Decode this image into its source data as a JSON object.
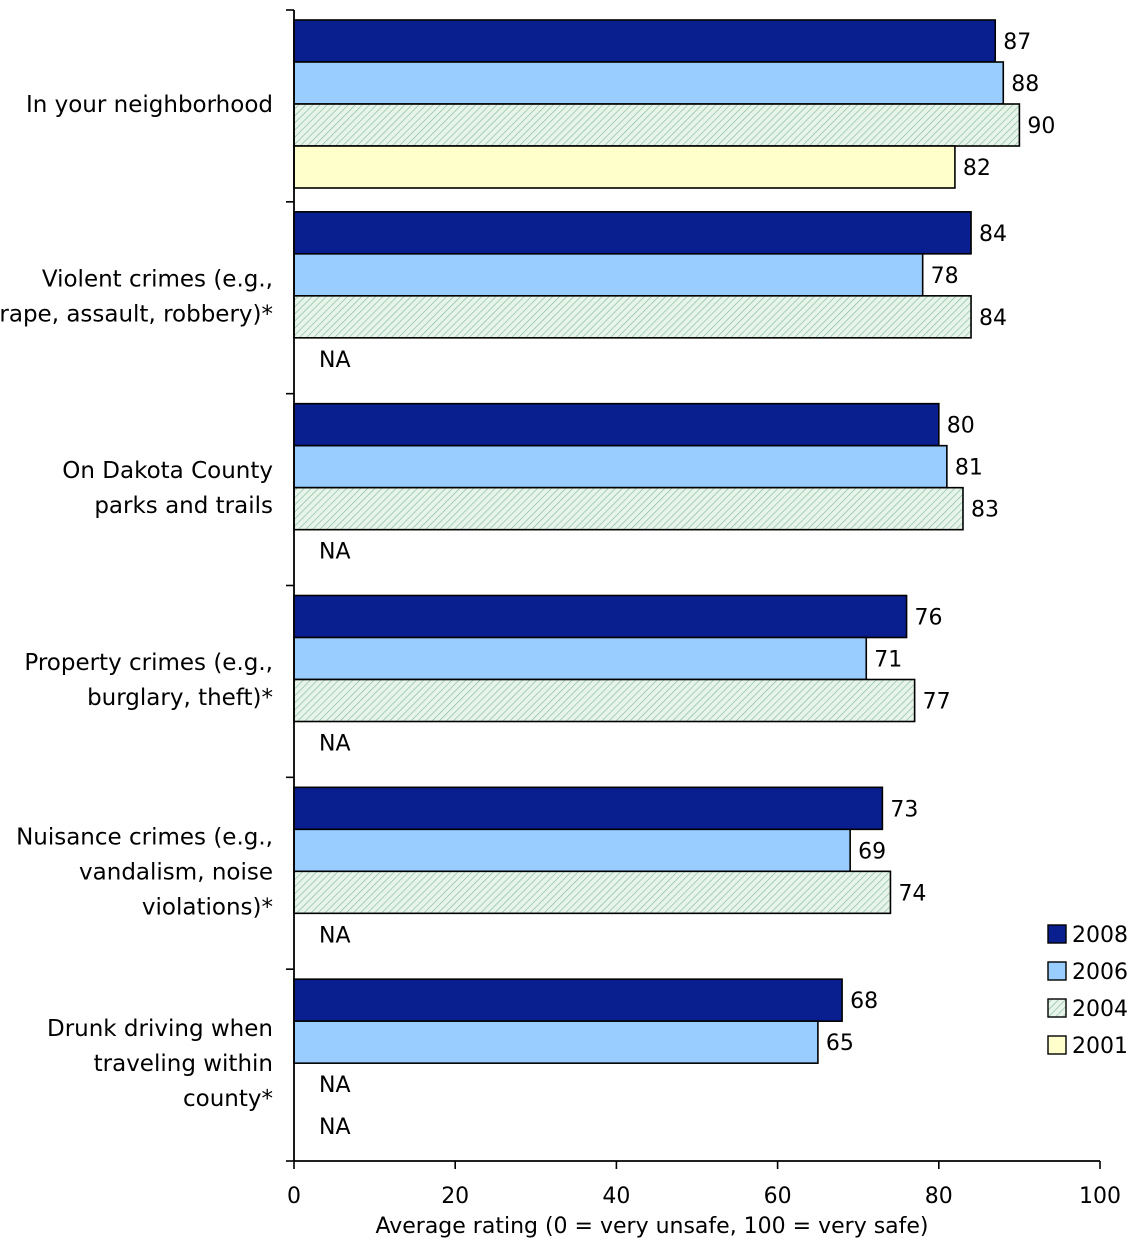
{
  "chart_data": {
    "type": "bar",
    "orientation": "horizontal",
    "categories": [
      [
        "In your neighborhood"
      ],
      [
        "Violent crimes (e.g.,",
        "rape, assault, robbery)*"
      ],
      [
        "On Dakota County",
        "parks and trails"
      ],
      [
        "Property crimes (e.g.,",
        "burglary, theft)*"
      ],
      [
        "Nuisance crimes (e.g.,",
        "vandalism, noise",
        "violations)*"
      ],
      [
        "Drunk driving when",
        "traveling within",
        "county*"
      ]
    ],
    "series": [
      {
        "name": "2008",
        "color": "#0a1f8f",
        "pattern": "solid",
        "values": [
          87,
          84,
          80,
          76,
          73,
          68
        ]
      },
      {
        "name": "2006",
        "color": "#99ccff",
        "pattern": "solid",
        "values": [
          88,
          78,
          81,
          71,
          69,
          65
        ]
      },
      {
        "name": "2004",
        "color": "#d6eedd",
        "pattern": "diagonal-hatch",
        "values": [
          90,
          84,
          83,
          77,
          74,
          null
        ]
      },
      {
        "name": "2001",
        "color": "#ffffcc",
        "pattern": "solid",
        "values": [
          82,
          null,
          null,
          null,
          null,
          null
        ]
      }
    ],
    "missing_label": "NA",
    "xlabel": "Average rating (0 = very unsafe, 100 = very safe)",
    "xlim": [
      0,
      100
    ],
    "xticks": [
      0,
      20,
      40,
      60,
      80,
      100
    ],
    "legend_position": "bottom-right",
    "grid": false
  }
}
